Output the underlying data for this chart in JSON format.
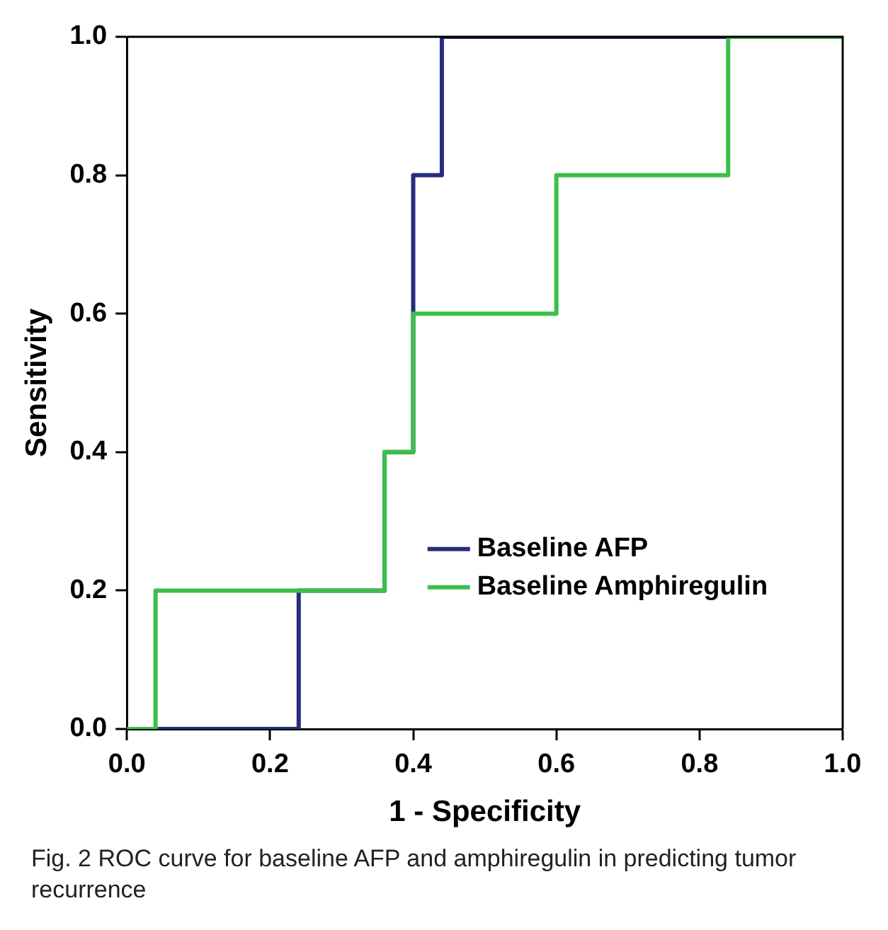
{
  "chart_data": {
    "type": "line",
    "xlabel": "1 - Specificity",
    "ylabel": "Sensitivity",
    "annotations": [
      "Fig. 2  ROC curve for baseline AFP and amphiregulin in predicting tumor recurrence"
    ],
    "series": [
      {
        "name": "Baseline AFP",
        "color": "#252e7e",
        "x": [
          0,
          0.24,
          0.24,
          0.36,
          0.36,
          0.4,
          0.4,
          0.44,
          0.44,
          1
        ],
        "values": [
          0,
          0,
          0.2,
          0.2,
          0.4,
          0.4,
          0.8,
          0.8,
          1,
          1
        ]
      },
      {
        "name": "Baseline Amphiregulin",
        "color": "#3cbf4a",
        "x": [
          0,
          0.04,
          0.04,
          0.36,
          0.36,
          0.4,
          0.4,
          0.6,
          0.6,
          0.84,
          0.84,
          1
        ],
        "values": [
          0,
          0,
          0.2,
          0.2,
          0.4,
          0.4,
          0.6,
          0.6,
          0.8,
          0.8,
          1,
          1
        ]
      }
    ],
    "xlim": [
      0,
      1
    ],
    "ylim": [
      0,
      1
    ],
    "xticks": [
      {
        "value": 0,
        "label": "0.0"
      },
      {
        "value": 0.2,
        "label": "0.2"
      },
      {
        "value": 0.4,
        "label": "0.4"
      },
      {
        "value": 0.6,
        "label": "0.6"
      },
      {
        "value": 0.8,
        "label": "0.8"
      },
      {
        "value": 1,
        "label": "1.0"
      }
    ],
    "yticks": [
      {
        "value": 0,
        "label": "0.0"
      },
      {
        "value": 0.2,
        "label": "0.2"
      },
      {
        "value": 0.4,
        "label": "0.4"
      },
      {
        "value": 0.6,
        "label": "0.6"
      },
      {
        "value": 0.8,
        "label": "0.8"
      },
      {
        "value": 1,
        "label": "1.0"
      }
    ],
    "grid": false,
    "legend": "bottom right",
    "marker": "none",
    "line_style": "solid"
  }
}
